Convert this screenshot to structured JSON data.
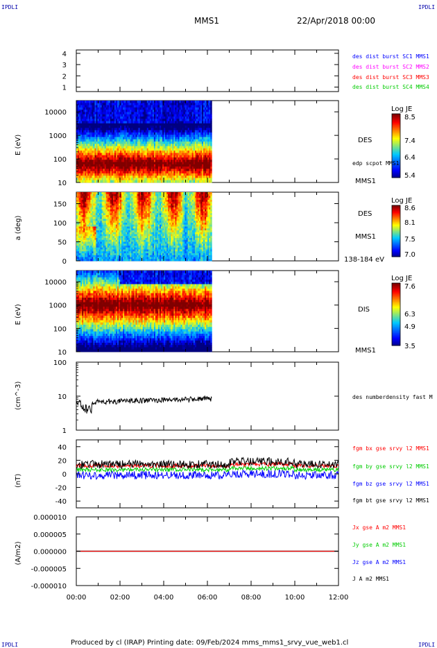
{
  "corner_label": "IPDLI",
  "header": {
    "spacecraft": "MMS1",
    "date": "22/Apr/2018 00:00"
  },
  "footer": "Produced by cl (IRAP)   Printing date: 09/Feb/2024   mms_mms1_srvy_vue_web1.cl",
  "colors": {
    "blue": "#0000ff",
    "magenta": "#ff00ff",
    "red": "#ff0000",
    "green": "#00cc00",
    "black": "#000000"
  },
  "chart_data": [
    {
      "id": "sc_times",
      "type": "scatter",
      "ylabel": "",
      "yticks": [
        "1",
        "2",
        "3",
        "4"
      ],
      "yrange": [
        0.6,
        4.3
      ],
      "legend": [
        {
          "label": "des dist burst SC1 MMS1",
          "color": "#0000ff"
        },
        {
          "label": "des dist burst SC2 MMS2",
          "color": "#ff00ff"
        },
        {
          "label": "des dist burst SC3 MMS3",
          "color": "#ff0000"
        },
        {
          "label": "des dist burst SC4 MMS4",
          "color": "#00cc00"
        }
      ]
    },
    {
      "id": "des_energy",
      "type": "heatmap",
      "ylabel": "E (eV)",
      "yscale": "log",
      "yticks": [
        "10",
        "100",
        "1000",
        "10000"
      ],
      "yrange": [
        10,
        30000
      ],
      "data_end_hour": 6.2,
      "right_labels": [
        "DES",
        "edp scpot MMS1",
        "MMS1"
      ],
      "colorbar": {
        "title": "Log JE",
        "ticks": [
          "8.5",
          "7.4",
          "6.4",
          "5.4"
        ]
      },
      "peak_energy_ev": 60
    },
    {
      "id": "des_pitch",
      "type": "heatmap",
      "ylabel": "a (deg)",
      "yticks": [
        "0",
        "50",
        "100",
        "150"
      ],
      "yrange": [
        0,
        180
      ],
      "data_end_hour": 6.2,
      "right_labels": [
        "DES",
        "MMS1",
        "138-184 eV"
      ],
      "colorbar": {
        "title": "Log JE",
        "ticks": [
          "8.6",
          "8.1",
          "7.5",
          "7.0"
        ]
      }
    },
    {
      "id": "dis_energy",
      "type": "heatmap",
      "ylabel": "E (eV)",
      "yscale": "log",
      "yticks": [
        "10",
        "100",
        "1000",
        "10000"
      ],
      "yrange": [
        10,
        30000
      ],
      "data_end_hour": 6.2,
      "right_labels": [
        "DIS",
        "MMS1"
      ],
      "colorbar": {
        "title": "Log JE",
        "ticks": [
          "7.6",
          "6.3",
          "4.9",
          "3.5"
        ]
      },
      "peak_energy_ev": 1000
    },
    {
      "id": "density",
      "type": "line",
      "ylabel": "(cm^-3)",
      "yscale": "log",
      "yticks": [
        "1",
        "10",
        "100"
      ],
      "yrange": [
        1,
        100
      ],
      "series": [
        {
          "name": "des numberdensity fast M",
          "color": "#000000"
        }
      ],
      "approx": {
        "start_hour": 0.0,
        "end_hour": 6.2,
        "start_value": 6.5,
        "dip_value": 3.0,
        "end_value": 8.5
      }
    },
    {
      "id": "bfield",
      "type": "line",
      "ylabel": "(nT)",
      "yticks": [
        "-40",
        "-20",
        "0",
        "20",
        "40"
      ],
      "yrange": [
        -50,
        50
      ],
      "series": [
        {
          "name": "fgm bx gse srvy l2 MMS1",
          "color": "#ff0000",
          "mean": 12
        },
        {
          "name": "fgm by gse srvy l2 MMS1",
          "color": "#00cc00",
          "mean": 6
        },
        {
          "name": "fgm bz gse srvy l2 MMS1",
          "color": "#0000ff",
          "mean": -2
        },
        {
          "name": "fgm bt gse srvy l2 MMS1",
          "color": "#000000",
          "mean": 14
        }
      ]
    },
    {
      "id": "current",
      "type": "line",
      "ylabel": "(A/m2)",
      "yticks": [
        "-0.000010",
        "-0.000005",
        "0.000000",
        "0.000005",
        "0.000010"
      ],
      "yrange": [
        -1e-05,
        1e-05
      ],
      "series": [
        {
          "name": "Jx gse A m2 MMS1",
          "color": "#ff0000"
        },
        {
          "name": "Jy gse A m2 MMS1",
          "color": "#00cc00"
        },
        {
          "name": "Jz gse A m2 MMS1",
          "color": "#0000ff"
        },
        {
          "name": "J A m2 MMS1",
          "color": "#000000"
        }
      ],
      "value": 0.0
    }
  ],
  "time_axis": {
    "range_hours": [
      0,
      12
    ],
    "tick_labels": [
      "00:00",
      "02:00",
      "04:00",
      "06:00",
      "08:00",
      "10:00",
      "12:00"
    ]
  }
}
